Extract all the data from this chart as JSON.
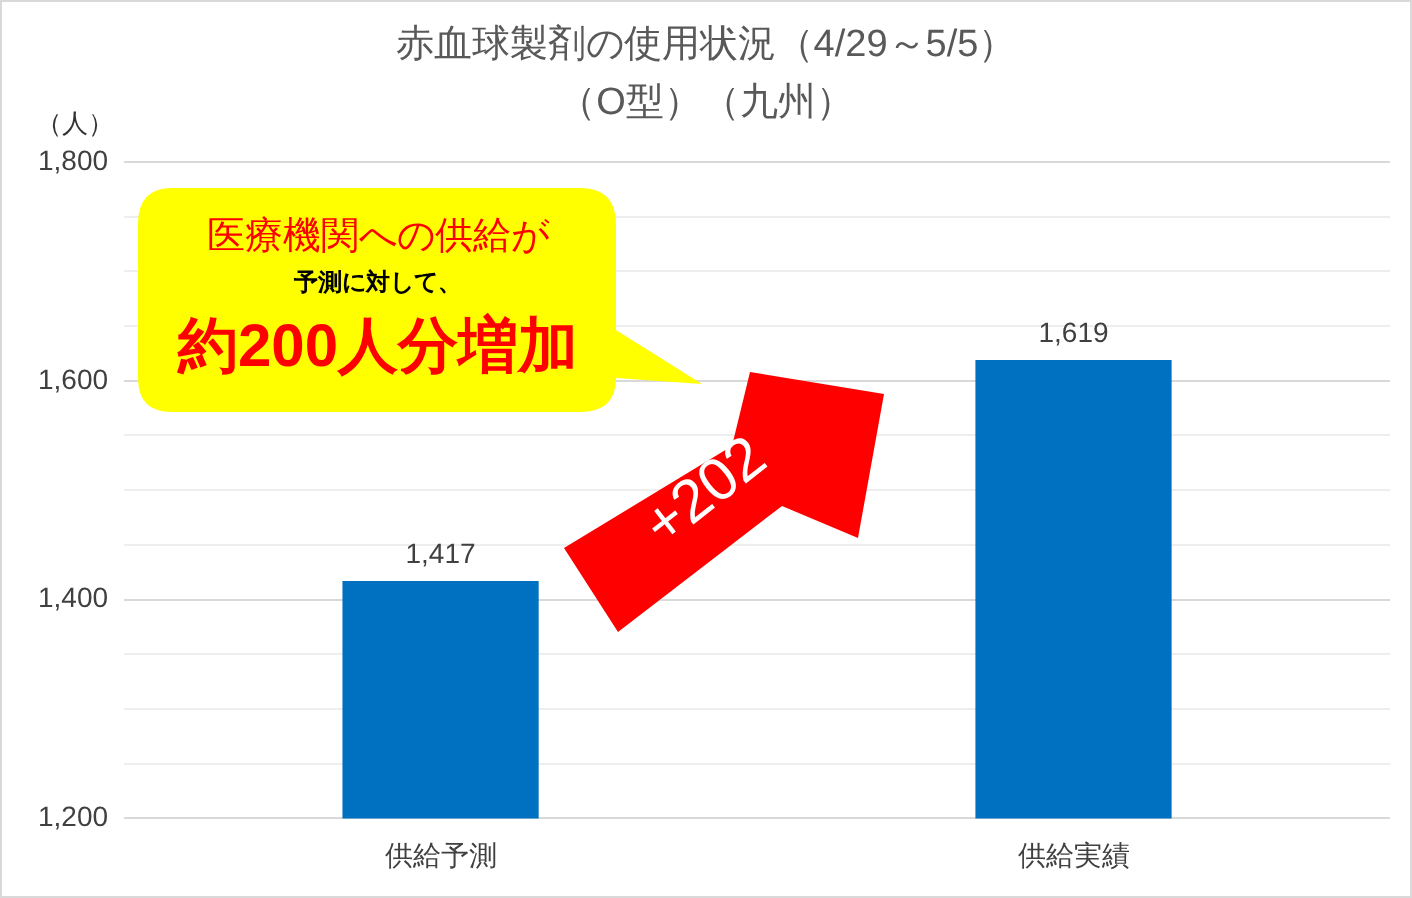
{
  "chart_data": {
    "type": "bar",
    "title": "赤血球製剤の使用状況（4/29～5/5）",
    "subtitle": "（O型）（九州）",
    "ylabel": "（人）",
    "categories": [
      "供給予測",
      "供給実績"
    ],
    "values": [
      1417,
      1619
    ],
    "color": "#0070c0",
    "value_labels": [
      "1,417",
      "1,619"
    ],
    "ylim": [
      1200,
      1800
    ],
    "yticks": [
      {
        "value": 1200,
        "label": "1,200"
      },
      {
        "value": 1250,
        "label": null
      },
      {
        "value": 1300,
        "label": null
      },
      {
        "value": 1350,
        "label": null
      },
      {
        "value": 1400,
        "label": "1,400"
      },
      {
        "value": 1450,
        "label": null
      },
      {
        "value": 1500,
        "label": null
      },
      {
        "value": 1550,
        "label": null
      },
      {
        "value": 1600,
        "label": "1,600"
      },
      {
        "value": 1650,
        "label": null
      },
      {
        "value": 1700,
        "label": null
      },
      {
        "value": 1750,
        "label": null
      },
      {
        "value": 1800,
        "label": "1,800"
      }
    ],
    "grid": "y",
    "legend": false,
    "annotations": [
      "医療機関への供給が",
      "予測に対して、",
      "約200人分増加",
      "+202"
    ]
  }
}
